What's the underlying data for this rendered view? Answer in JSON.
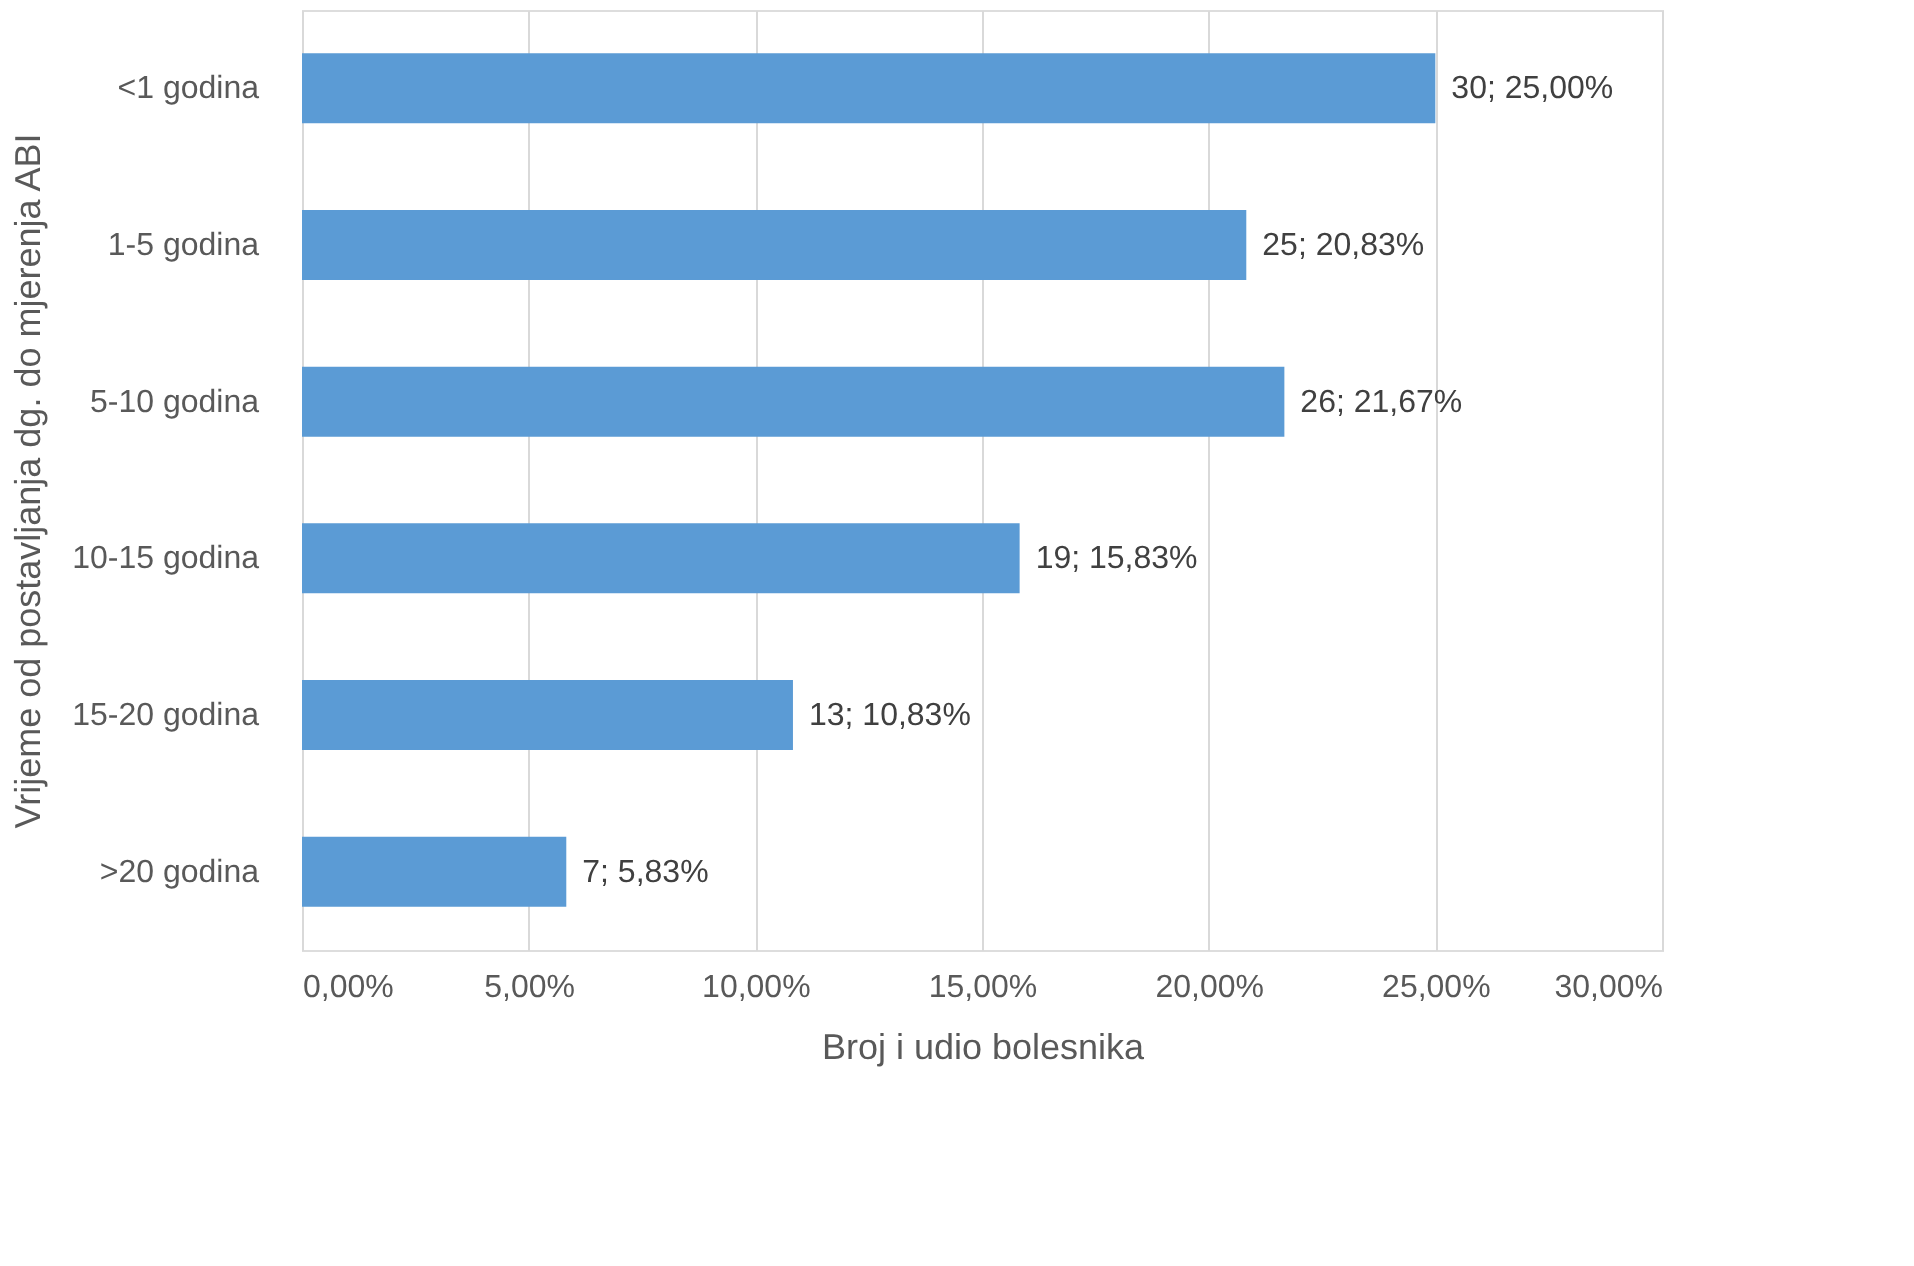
{
  "chart_data": {
    "type": "bar",
    "orientation": "horizontal",
    "xlabel": "Broj i udio bolesnika",
    "ylabel": "Vrijeme od postavljanja dg. do mjerenja ABI",
    "categories": [
      "<1 godina",
      "1-5 godina",
      "5-10 godina",
      "10-15 godina",
      "15-20 godina",
      ">20 godina"
    ],
    "values": [
      25.0,
      20.83,
      21.67,
      15.83,
      10.83,
      5.83
    ],
    "value_labels": [
      "30; 25,00%",
      "25; 20,83%",
      "26; 21,67%",
      "19; 15,83%",
      "13; 10,83%",
      "7; 5,83%"
    ],
    "color": "#5b9bd5",
    "xlim": [
      0,
      30
    ],
    "xticks": [
      {
        "value": 0,
        "label": "0,00%"
      },
      {
        "value": 5,
        "label": "5,00%"
      },
      {
        "value": 10,
        "label": "10,00%"
      },
      {
        "value": 15,
        "label": "15,00%"
      },
      {
        "value": 20,
        "label": "20,00%"
      },
      {
        "value": 25,
        "label": "25,00%"
      },
      {
        "value": 30,
        "label": "30,00%"
      }
    ],
    "grid": "x"
  }
}
